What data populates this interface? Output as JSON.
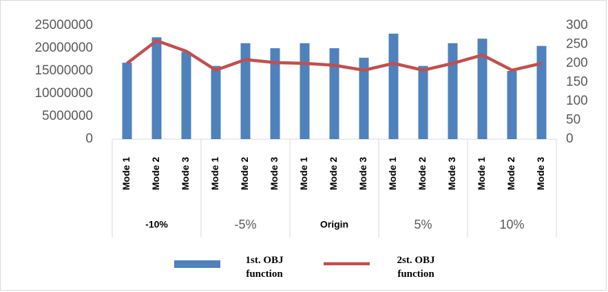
{
  "chart_data": {
    "type": "bar-line",
    "categories": [
      "Mode 1",
      "Mode 2",
      "Mode 3",
      "Mode 1",
      "Mode 2",
      "Mode 3",
      "Mode 1",
      "Mode 2",
      "Mode 3",
      "Mode 1",
      "Mode 2",
      "Mode 3",
      "Mode 1",
      "Mode 2",
      "Mode 3"
    ],
    "groups": [
      "-10%",
      "-5%",
      "Origin",
      "5%",
      "10%"
    ],
    "series": [
      {
        "name": "1st. OBJ function",
        "type": "bar",
        "color": "#4f81bd",
        "values": [
          16800000,
          22400000,
          19200000,
          16100000,
          21100000,
          20000000,
          21100000,
          20000000,
          17900000,
          23200000,
          16100000,
          21100000,
          22100000,
          15000000,
          20500000
        ]
      },
      {
        "name": "2st. OBJ function",
        "type": "line",
        "axis": "y2",
        "color": "#c0504d",
        "values": [
          200,
          260,
          232,
          182,
          210,
          202,
          200,
          195,
          182,
          200,
          182,
          200,
          222,
          182,
          200
        ]
      }
    ],
    "ylim": [
      0,
      25000000
    ],
    "yticks": [
      0,
      5000000,
      10000000,
      15000000,
      20000000,
      25000000
    ],
    "y2lim": [
      0,
      300
    ],
    "y2ticks": [
      0,
      50,
      100,
      150,
      200,
      250,
      300
    ]
  }
}
